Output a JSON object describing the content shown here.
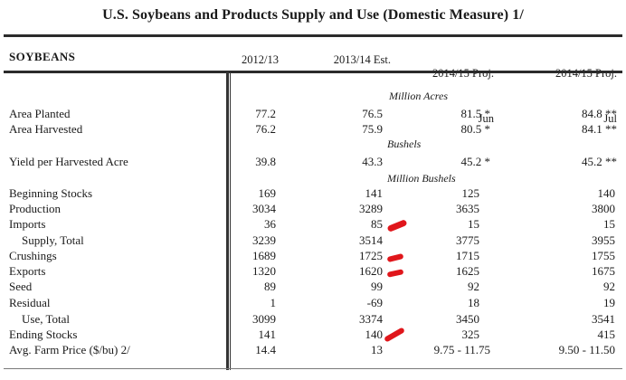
{
  "title": "U.S. Soybeans and Products Supply and Use (Domestic Measure)  1/",
  "section": "SOYBEANS",
  "columns": [
    {
      "line1": "2012/13",
      "line2": ""
    },
    {
      "line1": "2013/14 Est.",
      "line2": ""
    },
    {
      "line1": "2014/15 Proj.",
      "line2": "Jun"
    },
    {
      "line1": "2014/15 Proj.",
      "line2": "Jul"
    }
  ],
  "units": {
    "million_acres": "Million Acres",
    "bushels": "Bushels",
    "million_bushels": "Million Bushels"
  },
  "rows": [
    {
      "label": "Area Planted",
      "values": [
        "77.2",
        "76.5",
        "81.5 *",
        "84.8 **"
      ]
    },
    {
      "label": "Area Harvested",
      "values": [
        "76.2",
        "75.9",
        "80.5 *",
        "84.1 **"
      ]
    },
    {
      "label": "Yield per Harvested Acre",
      "values": [
        "39.8",
        "43.3",
        "45.2 *",
        "45.2 **"
      ]
    },
    {
      "label": "Beginning Stocks",
      "values": [
        "169",
        "141",
        "125",
        "140"
      ]
    },
    {
      "label": "Production",
      "values": [
        "3034",
        "3289",
        "3635",
        "3800"
      ]
    },
    {
      "label": "Imports",
      "values": [
        "36",
        "85",
        "15",
        "15"
      ]
    },
    {
      "label": "Supply, Total",
      "values": [
        "3239",
        "3514",
        "3775",
        "3955"
      ]
    },
    {
      "label": "Crushings",
      "values": [
        "1689",
        "1725",
        "1715",
        "1755"
      ]
    },
    {
      "label": "Exports",
      "values": [
        "1320",
        "1620",
        "1625",
        "1675"
      ]
    },
    {
      "label": "Seed",
      "values": [
        "89",
        "99",
        "92",
        "92"
      ]
    },
    {
      "label": "Residual",
      "values": [
        "1",
        "-69",
        "18",
        "19"
      ]
    },
    {
      "label": "Use, Total",
      "values": [
        "3099",
        "3374",
        "3450",
        "3541"
      ]
    },
    {
      "label": "Ending Stocks",
      "values": [
        "141",
        "140",
        "325",
        "415"
      ]
    },
    {
      "label": "Avg. Farm Price ($/bu)  2/",
      "values": [
        "14.4",
        "13",
        "9.75 - 11.75",
        "9.50 - 11.50"
      ]
    }
  ],
  "colors": {
    "rule": "#2b2b2b",
    "annotation_mark": "#e0161b"
  }
}
